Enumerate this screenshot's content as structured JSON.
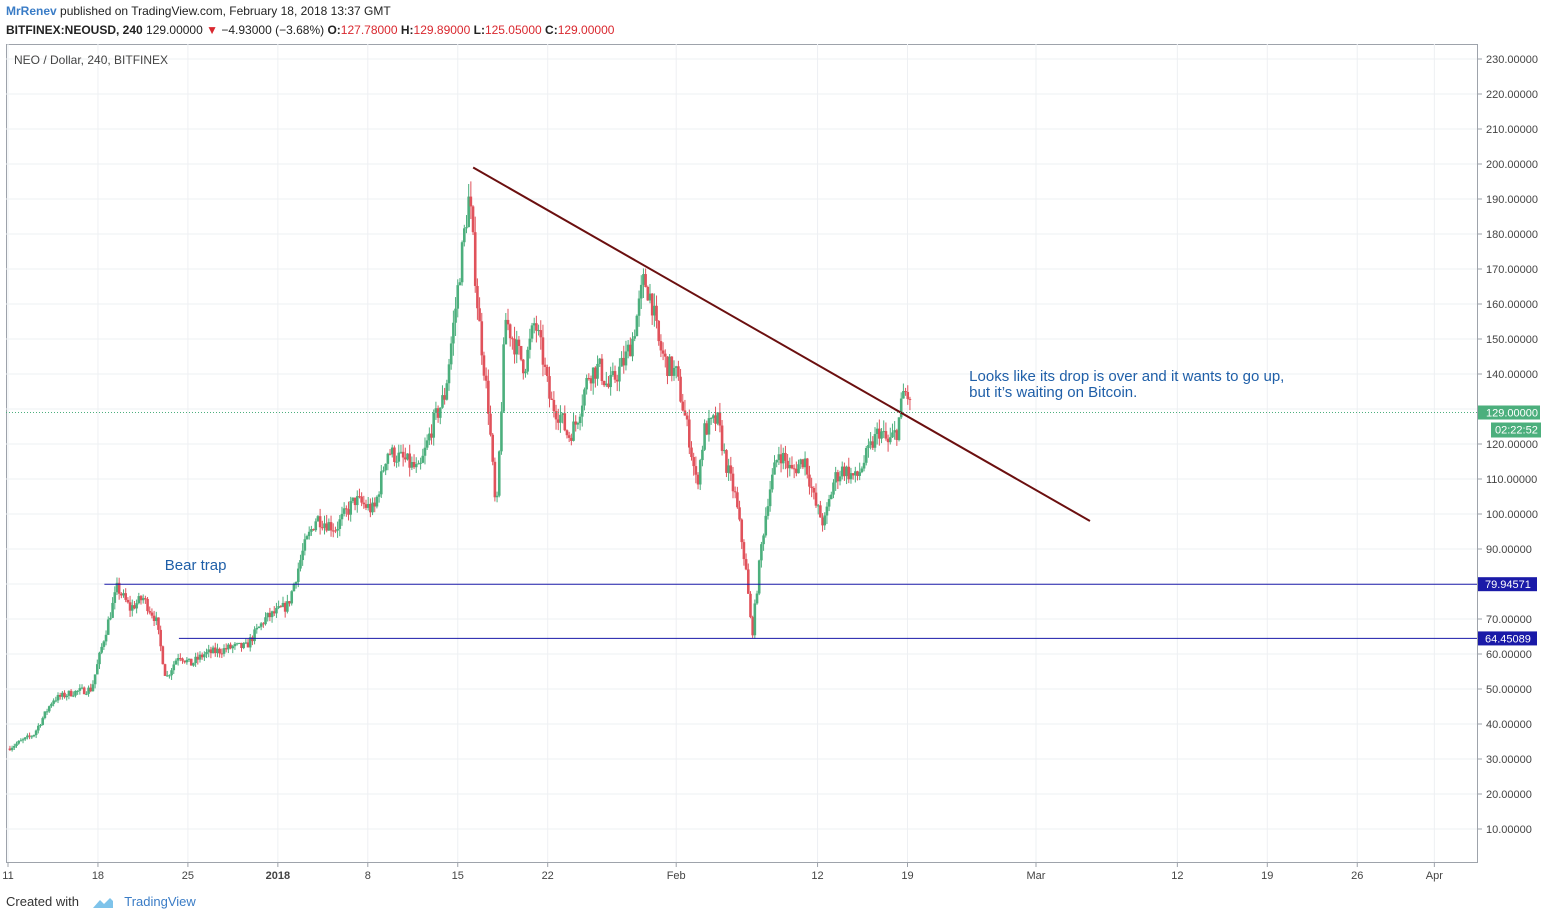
{
  "header": {
    "author": "MrRenev",
    "published_text": "published on TradingView.com, February 18, 2018 13:37 GMT",
    "symbol": "BITFINEX:NEOUSD, 240",
    "last_price": "129.00000",
    "change": "−4.93000 (−3.68%)",
    "open_label": "O:",
    "open": "127.78000",
    "high_label": "H:",
    "high": "129.89000",
    "low_label": "L:",
    "low": "125.05000",
    "close_label": "C:",
    "close": "129.00000"
  },
  "footer": {
    "created_with": "Created with",
    "brand": "TradingView"
  },
  "colors": {
    "up": "#4caf7d",
    "down": "#e0525b",
    "trendline": "#6b0f0f",
    "hline": "#1a1aa8",
    "annotation": "#1f5fa8",
    "price_tag": "#4caf7d",
    "grid": "#eef0f3"
  },
  "chart_data": {
    "type": "candlestick",
    "title": "NEO / Dollar, 240, BITFINEX",
    "y_axis": {
      "min": 0,
      "max": 235,
      "ticks": [
        10,
        20,
        30,
        40,
        50,
        60,
        70,
        80,
        90,
        100,
        110,
        120,
        130,
        140,
        150,
        160,
        170,
        180,
        190,
        200,
        210,
        220,
        230
      ],
      "tick_labels": [
        "10.00000",
        "20.00000",
        "30.00000",
        "40.00000",
        "50.00000",
        "60.00000",
        "70.00000",
        "80.00000",
        "90.00000",
        "100.00000",
        "110.00000",
        "120.00000",
        "130.00000",
        "140.00000",
        "150.00000",
        "160.00000",
        "170.00000",
        "180.00000",
        "190.00000",
        "200.00000",
        "210.00000",
        "220.00000",
        "230.00000"
      ]
    },
    "x_axis": {
      "start_day": 0,
      "end_day": 113,
      "ticks": [
        {
          "day": 0,
          "label": "11"
        },
        {
          "day": 7,
          "label": "18"
        },
        {
          "day": 14,
          "label": "25"
        },
        {
          "day": 21,
          "label": "2018",
          "bold": true
        },
        {
          "day": 28,
          "label": "8"
        },
        {
          "day": 35,
          "label": "15"
        },
        {
          "day": 42,
          "label": "22"
        },
        {
          "day": 52,
          "label": "Feb"
        },
        {
          "day": 63,
          "label": "12"
        },
        {
          "day": 70,
          "label": "19"
        },
        {
          "day": 80,
          "label": "Mar"
        },
        {
          "day": 91,
          "label": "12"
        },
        {
          "day": 98,
          "label": "19"
        },
        {
          "day": 105,
          "label": "26"
        },
        {
          "day": 111,
          "label": "Apr"
        }
      ]
    },
    "path_points": [
      [
        0,
        33
      ],
      [
        2,
        37
      ],
      [
        3.5,
        47
      ],
      [
        5,
        49
      ],
      [
        6.5,
        50
      ],
      [
        7.5,
        65
      ],
      [
        8.5,
        79
      ],
      [
        9.5,
        73
      ],
      [
        10.5,
        76
      ],
      [
        11.5,
        70
      ],
      [
        12.3,
        53
      ],
      [
        13.3,
        60
      ],
      [
        14.2,
        57
      ],
      [
        15.3,
        60
      ],
      [
        16.5,
        61
      ],
      [
        17.5,
        62
      ],
      [
        18.5,
        62
      ],
      [
        20,
        70
      ],
      [
        21.8,
        74
      ],
      [
        23,
        90
      ],
      [
        24,
        99
      ],
      [
        25.5,
        96
      ],
      [
        27,
        104
      ],
      [
        28.5,
        101
      ],
      [
        29.5,
        118
      ],
      [
        31,
        115
      ],
      [
        32,
        112
      ],
      [
        33,
        125
      ],
      [
        34,
        134
      ],
      [
        34.8,
        158
      ],
      [
        35.5,
        180
      ],
      [
        35.9,
        191
      ],
      [
        36.6,
        157
      ],
      [
        37.4,
        130
      ],
      [
        38,
        98
      ],
      [
        38.7,
        156
      ],
      [
        39.5,
        148
      ],
      [
        40.2,
        142
      ],
      [
        41,
        155
      ],
      [
        41.6,
        145
      ],
      [
        42.2,
        132
      ],
      [
        43,
        128
      ],
      [
        43.6,
        122
      ],
      [
        44.2,
        126
      ],
      [
        45.2,
        140
      ],
      [
        46,
        142
      ],
      [
        46.7,
        136
      ],
      [
        47.4,
        140
      ],
      [
        48,
        144
      ],
      [
        48.6,
        150
      ],
      [
        49.5,
        167
      ],
      [
        50.1,
        161
      ],
      [
        50.6,
        149
      ],
      [
        51.2,
        143
      ],
      [
        52,
        140
      ],
      [
        53,
        122
      ],
      [
        53.6,
        108
      ],
      [
        54.2,
        124
      ],
      [
        55.2,
        127
      ],
      [
        55.9,
        114
      ],
      [
        56.6,
        105
      ],
      [
        57.4,
        85
      ],
      [
        57.9,
        65
      ],
      [
        58.6,
        90
      ],
      [
        59.2,
        106
      ],
      [
        60,
        118
      ],
      [
        61,
        112
      ],
      [
        62,
        116
      ],
      [
        62.8,
        103
      ],
      [
        63.5,
        97
      ],
      [
        64.3,
        110
      ],
      [
        65,
        113
      ],
      [
        66,
        110
      ],
      [
        67,
        118
      ],
      [
        67.8,
        124
      ],
      [
        68.5,
        120
      ],
      [
        69.2,
        124
      ],
      [
        69.7,
        135
      ],
      [
        70,
        134
      ],
      [
        70.3,
        129
      ]
    ],
    "trendline": {
      "from": {
        "day": 36.2,
        "value": 199
      },
      "to": {
        "day": 84.2,
        "value": 98
      }
    },
    "horizontal_lines": [
      {
        "value": 79.94571,
        "label": "79.94571",
        "from_day": 7.5
      },
      {
        "value": 64.45089,
        "label": "64.45089",
        "from_day": 13.3
      }
    ],
    "last_price_line": {
      "value": 129.0,
      "label": "129.00000",
      "countdown": "02:22:52"
    },
    "annotations": [
      {
        "text": "Bear trap",
        "day": 12.2,
        "value": 84
      },
      {
        "text": "Looks like its drop is over and it wants to go up,",
        "day": 74.8,
        "value": 138
      },
      {
        "text": "but it’s waiting on Bitcoin.",
        "day": 74.8,
        "value": 133.5
      }
    ]
  }
}
